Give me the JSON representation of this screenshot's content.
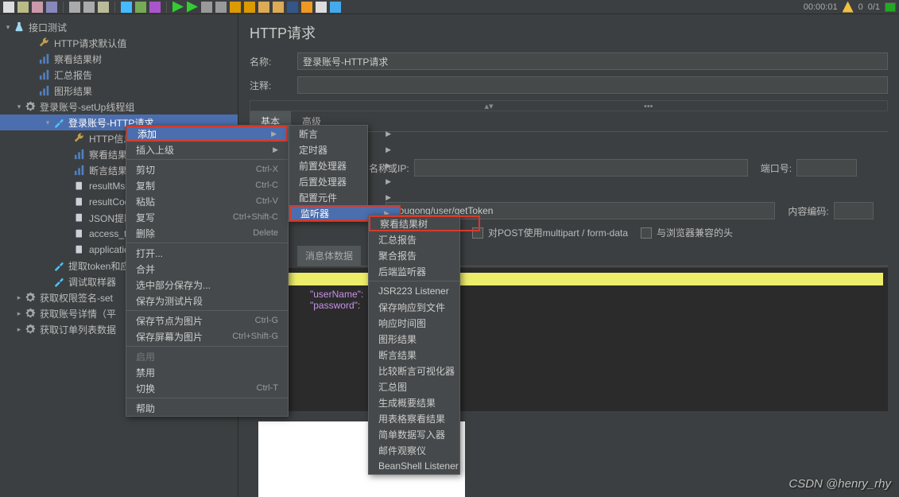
{
  "toolbar": {
    "timer": "00:00:01",
    "warn_count": "0",
    "threads": "0/1"
  },
  "tree": {
    "root": "接口测试",
    "items": [
      {
        "label": "HTTP请求默认值",
        "indent": 36,
        "icon": "wrench"
      },
      {
        "label": "察看结果树",
        "indent": 36,
        "icon": "chart"
      },
      {
        "label": "汇总报告",
        "indent": 36,
        "icon": "chart"
      },
      {
        "label": "图形结果",
        "indent": 36,
        "icon": "chart"
      },
      {
        "label": "登录账号-setUp线程组",
        "indent": 18,
        "icon": "gear",
        "toggle": "▾"
      },
      {
        "label": "登录账号-HTTP请求",
        "indent": 54,
        "icon": "probe",
        "toggle": "▾",
        "selected": true
      },
      {
        "label": "HTTP信息",
        "indent": 80,
        "icon": "wrench"
      },
      {
        "label": "察看结果树",
        "indent": 80,
        "icon": "chart"
      },
      {
        "label": "断言结果",
        "indent": 80,
        "icon": "chart"
      },
      {
        "label": "resultMsg",
        "indent": 80,
        "icon": "doc"
      },
      {
        "label": "resultCode",
        "indent": 80,
        "icon": "doc"
      },
      {
        "label": "JSON提取",
        "indent": 80,
        "icon": "doc"
      },
      {
        "label": "access_to",
        "indent": 80,
        "icon": "doc"
      },
      {
        "label": "application",
        "indent": 80,
        "icon": "doc"
      },
      {
        "label": "提取token和应",
        "indent": 54,
        "icon": "probe"
      },
      {
        "label": "调试取样器",
        "indent": 54,
        "icon": "probe"
      },
      {
        "label": "获取权限签名-set",
        "indent": 18,
        "icon": "gear",
        "toggle": "▸"
      },
      {
        "label": "获取账号详情（平",
        "indent": 18,
        "icon": "gear",
        "toggle": "▸"
      },
      {
        "label": "获取订单列表数据",
        "indent": 18,
        "icon": "gear",
        "toggle": "▸"
      }
    ]
  },
  "content": {
    "title": "HTTP请求",
    "name_label": "名称:",
    "name_value": "登录账号-HTTP请求",
    "comment_label": "注释:",
    "comment_value": "",
    "tabs": {
      "basic": "基本",
      "advanced": "高级"
    },
    "server_label": "名称或IP:",
    "port_label": "端口号:",
    "path_label": "径:",
    "path_value": "/yougong/user/getToken",
    "encoding_label": "内容编码:",
    "chk1": "对POST使用multipart / form-data",
    "chk2": "与浏览器兼容的头",
    "subtabs": {
      "msgbody": "消息体数据",
      "fileup": "文件上"
    },
    "json_k1": "\"userName\":",
    "json_k2": "\"password\":"
  },
  "ctx1": [
    {
      "label": "添加",
      "arrow": true,
      "highlighted": true,
      "redbox": true
    },
    {
      "label": "插入上级",
      "arrow": true
    },
    {
      "sep": true
    },
    {
      "label": "剪切",
      "shortcut": "Ctrl-X"
    },
    {
      "label": "复制",
      "shortcut": "Ctrl-C"
    },
    {
      "label": "粘贴",
      "shortcut": "Ctrl-V"
    },
    {
      "label": "复写",
      "shortcut": "Ctrl+Shift-C"
    },
    {
      "label": "删除",
      "shortcut": "Delete"
    },
    {
      "sep": true
    },
    {
      "label": "打开..."
    },
    {
      "label": "合并"
    },
    {
      "label": "选中部分保存为..."
    },
    {
      "label": "保存为测试片段"
    },
    {
      "sep": true
    },
    {
      "label": "保存节点为图片",
      "shortcut": "Ctrl-G"
    },
    {
      "label": "保存屏幕为图片",
      "shortcut": "Ctrl+Shift-G"
    },
    {
      "sep": true
    },
    {
      "label": "启用",
      "disabled": true
    },
    {
      "label": "禁用"
    },
    {
      "label": "切换",
      "shortcut": "Ctrl-T"
    },
    {
      "sep": true
    },
    {
      "label": "帮助"
    }
  ],
  "ctx2": [
    {
      "label": "断言",
      "arrow": true
    },
    {
      "label": "定时器",
      "arrow": true
    },
    {
      "label": "前置处理器",
      "arrow": true
    },
    {
      "label": "后置处理器",
      "arrow": true
    },
    {
      "label": "配置元件",
      "arrow": true
    },
    {
      "label": "监听器",
      "arrow": true,
      "highlighted": true,
      "redbox": true
    }
  ],
  "ctx3": [
    {
      "label": "察看结果树",
      "redbox": true
    },
    {
      "label": "汇总报告"
    },
    {
      "label": "聚合报告"
    },
    {
      "label": "后端监听器"
    },
    {
      "sep": true
    },
    {
      "label": "JSR223 Listener"
    },
    {
      "label": "保存响应到文件"
    },
    {
      "label": "响应时间图"
    },
    {
      "label": "图形结果"
    },
    {
      "label": "断言结果"
    },
    {
      "label": "比较断言可视化器"
    },
    {
      "label": "汇总图"
    },
    {
      "label": "生成概要结果"
    },
    {
      "label": "用表格察看结果"
    },
    {
      "label": "简单数据写入器"
    },
    {
      "label": "邮件观察仪"
    },
    {
      "label": "BeanShell Listener"
    }
  ],
  "watermark": "CSDN @henry_rhy"
}
